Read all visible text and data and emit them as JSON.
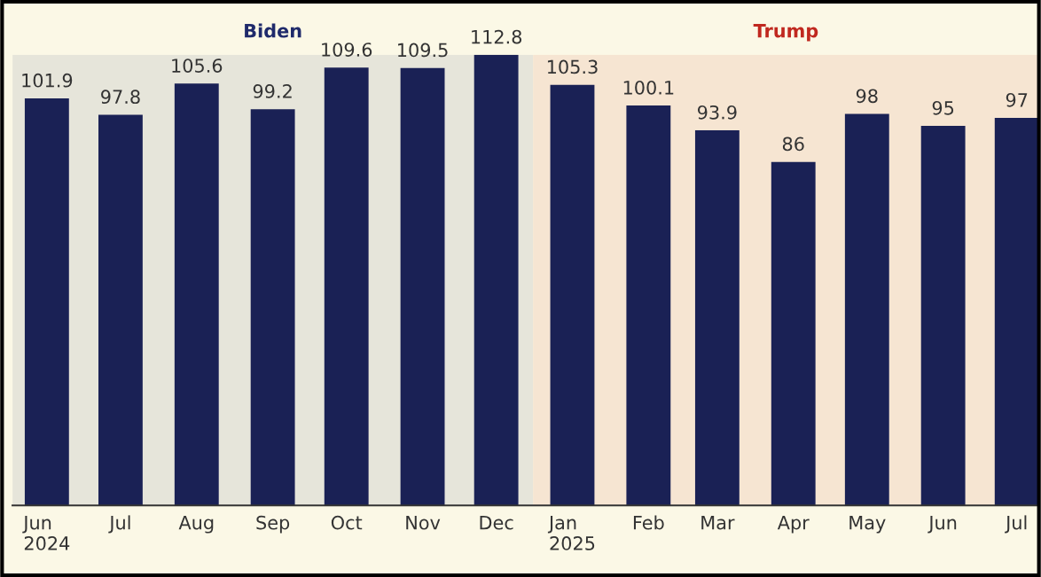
{
  "chart_data": {
    "type": "bar",
    "x": [
      "2024-06",
      "2024-07",
      "2024-08",
      "2024-09",
      "2024-10",
      "2024-11",
      "2024-12",
      "2025-01",
      "2025-02",
      "2025-03",
      "2025-04",
      "2025-05",
      "2025-06",
      "2025-07"
    ],
    "values": [
      101.9,
      97.8,
      105.6,
      99.2,
      109.6,
      109.5,
      112.8,
      105.3,
      100.1,
      93.9,
      86,
      98,
      95,
      97
    ],
    "color": "#1a2155",
    "data_labels": true,
    "xlim": [
      "2024-05-18",
      "2025-07-10"
    ],
    "xticks": [
      {
        "value": "2024-06",
        "label": "Jun\n2024"
      },
      {
        "value": "2024-07",
        "label": "Jul"
      },
      {
        "value": "2024-08",
        "label": "Aug"
      },
      {
        "value": "2024-09",
        "label": "Sep"
      },
      {
        "value": "2024-10",
        "label": "Oct"
      },
      {
        "value": "2024-11",
        "label": "Nov"
      },
      {
        "value": "2024-12",
        "label": "Dec"
      },
      {
        "value": "2025-01",
        "label": "Jan\n2025"
      },
      {
        "value": "2025-02",
        "label": "Feb"
      },
      {
        "value": "2025-03",
        "label": "Mar"
      },
      {
        "value": "2025-04",
        "label": "Apr"
      },
      {
        "value": "2025-05",
        "label": "May"
      },
      {
        "value": "2025-06",
        "label": "Jun"
      },
      {
        "value": "2025-07",
        "label": "Jul"
      }
    ],
    "ylim": [
      0,
      112.8
    ],
    "tick_labels": "x",
    "bands": [
      {
        "axis": "x",
        "from": "2024-05-18",
        "to": "2024-12-16",
        "label": "Biden",
        "color": "#e6e5da"
      },
      {
        "axis": "x",
        "from": "2024-12-16",
        "to": "2025-07-10",
        "label": "Trump",
        "color": "#f6e5d2"
      }
    ]
  }
}
